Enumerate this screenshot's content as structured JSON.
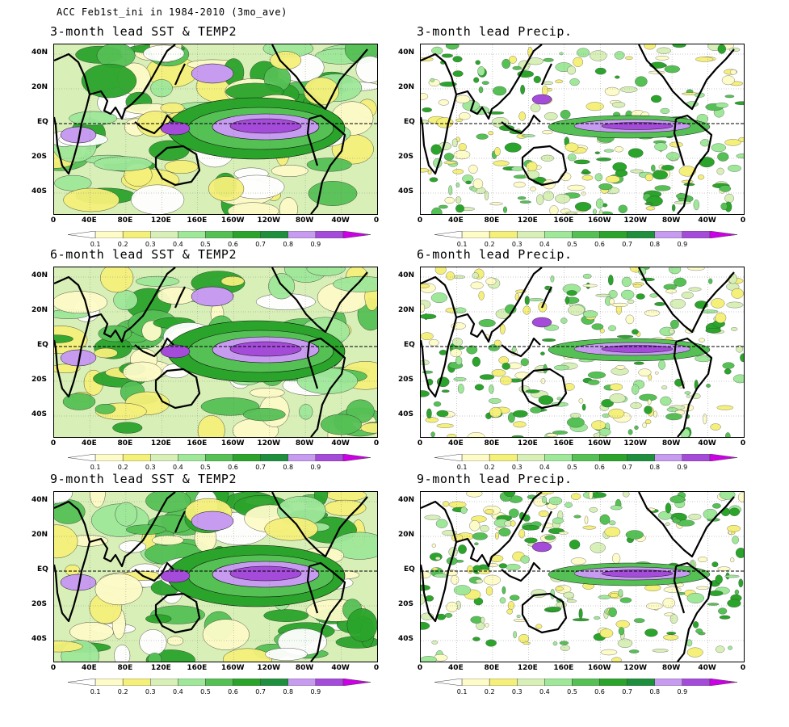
{
  "suptitle": "ACC Feb1st_ini in 1984-2010 (3mo_ave)",
  "panels": [
    {
      "title": "3-month lead SST & TEMP2",
      "kind": "sst"
    },
    {
      "title": "3-month lead Precip.",
      "kind": "pr"
    },
    {
      "title": "6-month lead SST & TEMP2",
      "kind": "sst"
    },
    {
      "title": "6-month lead Precip.",
      "kind": "pr"
    },
    {
      "title": "9-month lead SST & TEMP2",
      "kind": "sst"
    },
    {
      "title": "9-month lead Precip.",
      "kind": "pr"
    }
  ],
  "lat_labels": [
    "40N",
    "20N",
    "EQ",
    "20S",
    "40S"
  ],
  "lon_labels": [
    "0",
    "40E",
    "80E",
    "120E",
    "160E",
    "160W",
    "120W",
    "80W",
    "40W",
    "0"
  ],
  "colorbar": {
    "levels": [
      "0.1",
      "0.2",
      "0.3",
      "0.4",
      "0.5",
      "0.6",
      "0.7",
      "0.8",
      "0.9"
    ],
    "colors": [
      "#ffffff",
      "#fdfbc8",
      "#f5f07a",
      "#d8f0b8",
      "#9fe89a",
      "#55c155",
      "#2aa42a",
      "#1d8f3d",
      "#c79bf0",
      "#a54bd9",
      "#cc00e6"
    ]
  },
  "colors": {
    "line": "#000000",
    "white": "#ffffff",
    "lightyellow": "#fdfbc8",
    "yellow": "#f5f07a",
    "lightgreen": "#d8f0b8",
    "green": "#9fe89a",
    "midgreen": "#55c155",
    "darkgreen": "#2aa42a",
    "lilac": "#c79bf0",
    "purple": "#a54bd9"
  }
}
